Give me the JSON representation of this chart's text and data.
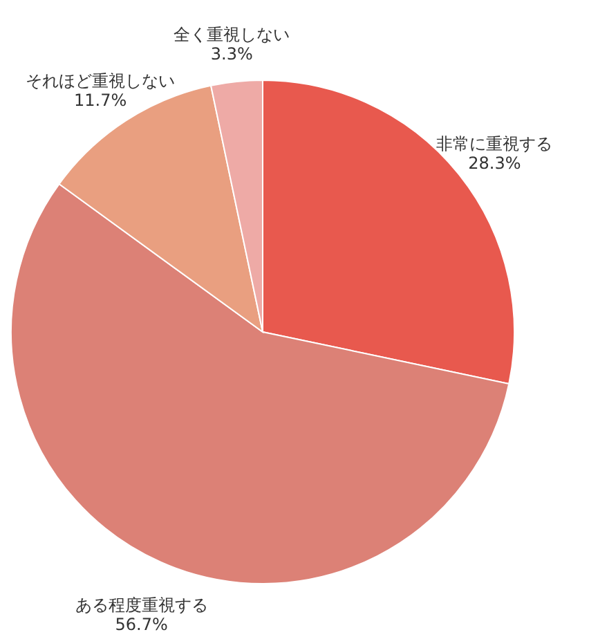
{
  "chart_data": {
    "type": "pie",
    "categories": [
      "非常に重視する",
      "ある程度重視する",
      "それほど重視しない",
      "全く重視しない"
    ],
    "values": [
      28.3,
      56.7,
      11.7,
      3.3
    ],
    "colors": [
      "#e8594e",
      "#dc8176",
      "#e99f80",
      "#eeaaa6"
    ],
    "value_labels": [
      "28.3%",
      "56.7%",
      "11.7%",
      "3.3%"
    ]
  }
}
